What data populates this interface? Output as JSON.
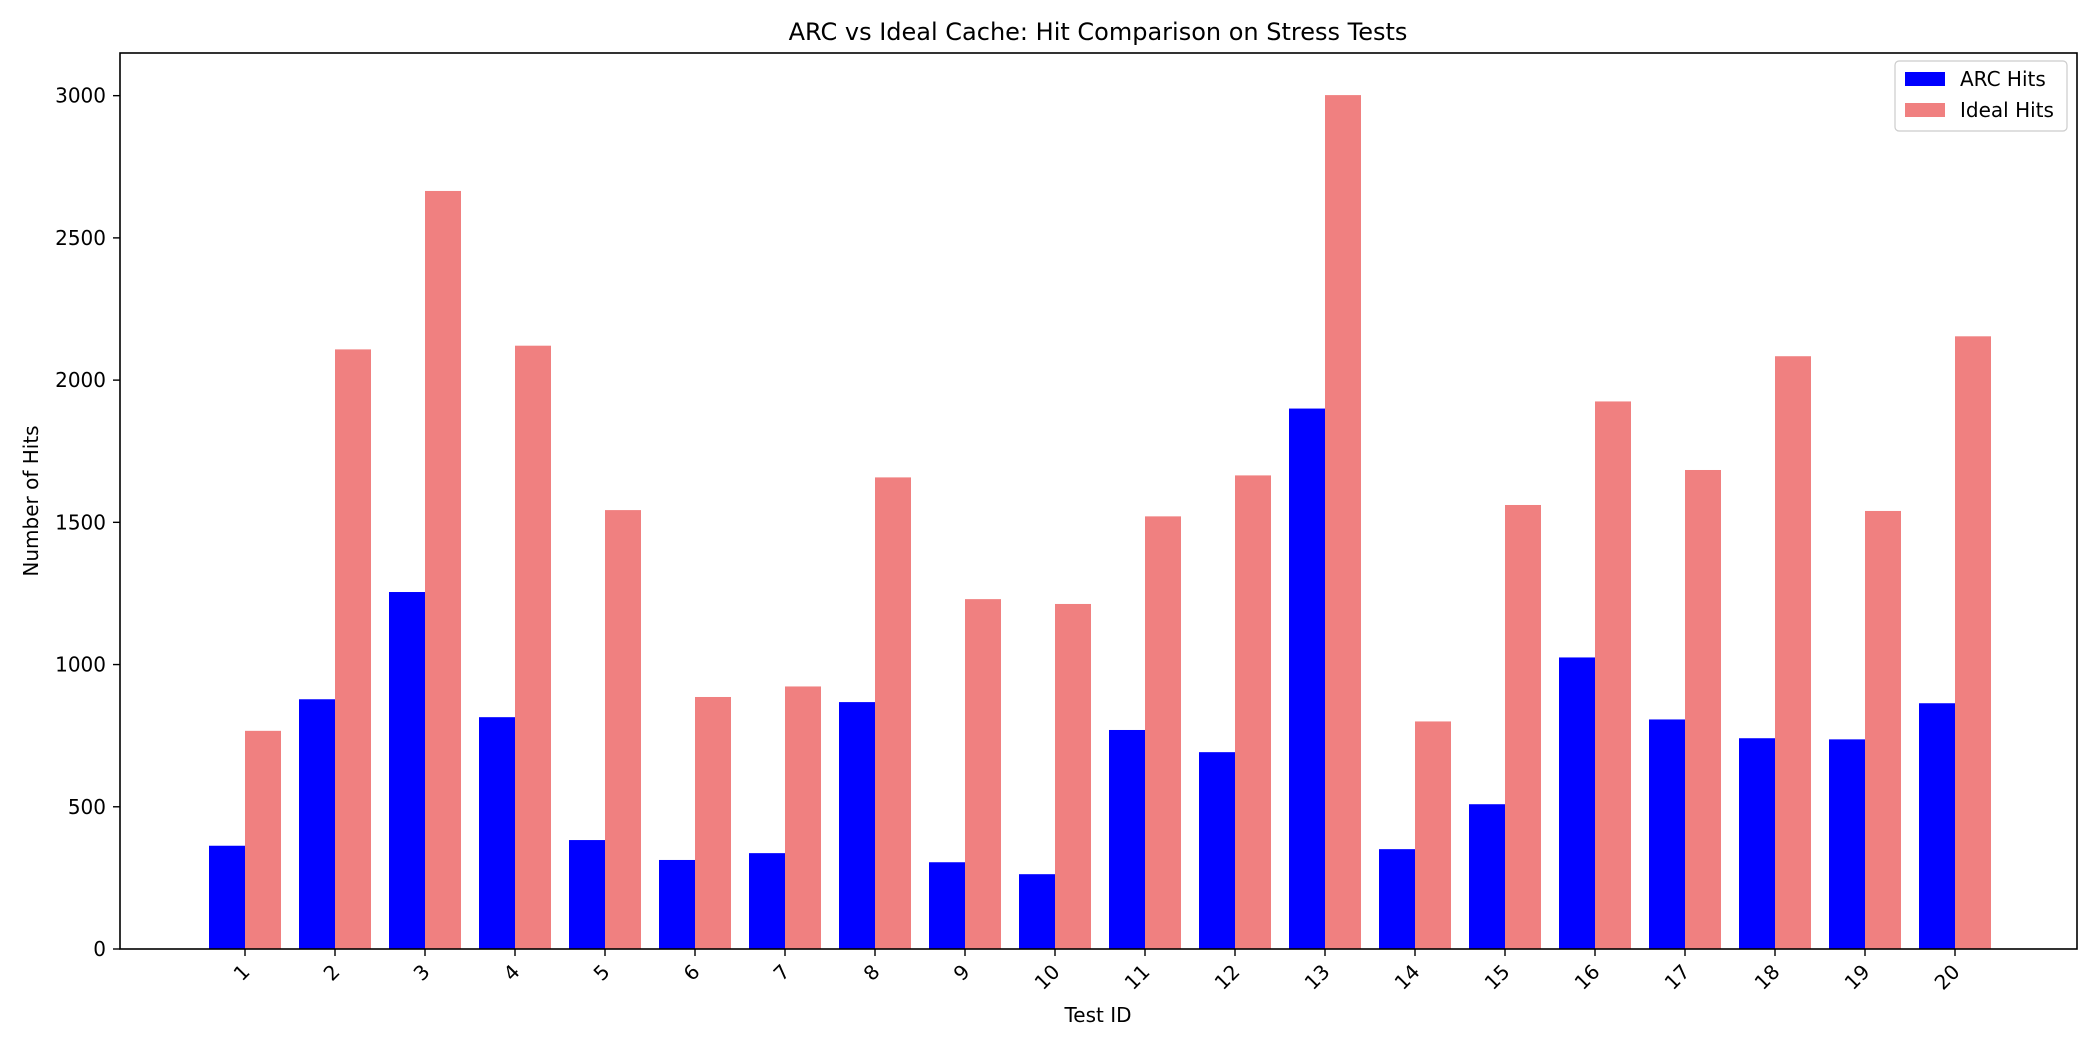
{
  "chart_data": {
    "type": "bar",
    "title": "ARC vs Ideal Cache: Hit Comparison on Stress Tests",
    "xlabel": "Test ID",
    "ylabel": "Number of Hits",
    "categories": [
      "1",
      "2",
      "3",
      "4",
      "5",
      "6",
      "7",
      "8",
      "9",
      "10",
      "11",
      "12",
      "13",
      "14",
      "15",
      "16",
      "17",
      "18",
      "19",
      "20"
    ],
    "series": [
      {
        "name": "ARC Hits",
        "color": "#0000ff",
        "values": [
          363,
          878,
          1255,
          815,
          383,
          313,
          337,
          868,
          305,
          263,
          770,
          692,
          1900,
          351,
          509,
          1025,
          807,
          741,
          737,
          864
        ]
      },
      {
        "name": "Ideal Hits",
        "color": "#f08080",
        "values": [
          767,
          2108,
          2665,
          2121,
          1543,
          886,
          923,
          1658,
          1230,
          1213,
          1521,
          1665,
          3002,
          800,
          1561,
          1925,
          1684,
          2084,
          1540,
          2154
        ]
      }
    ],
    "ylim": [
      0,
      3150
    ],
    "yticks": [
      0,
      500,
      1000,
      1500,
      2000,
      2500,
      3000
    ],
    "grid": false,
    "legend_position": "top-right",
    "xtick_rotation": 45
  }
}
